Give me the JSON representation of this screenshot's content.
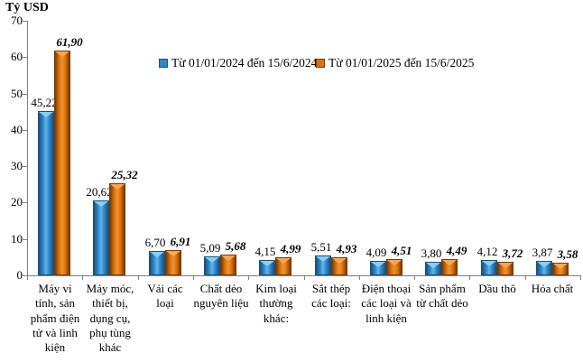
{
  "colors": {
    "axis": "#7f7f7f",
    "text": "#000000"
  },
  "chart_data": {
    "type": "bar",
    "ylabel": "Tỷ USD",
    "xlabel": "",
    "ylim": [
      0,
      70
    ],
    "yticks": [
      0,
      10,
      20,
      30,
      40,
      50,
      60,
      70
    ],
    "grid": false,
    "legend_position": "top-center",
    "categories": [
      "Máy vi tính, sản phẩm điện tử và linh kiện",
      "Máy móc, thiết bị, dụng cụ, phụ tùng khác",
      "Vải các loại",
      "Chất dẻo nguyên liệu",
      "Kim loại thường khác:",
      "Sắt thép các loại:",
      "Điện thoại các loại và linh kiện",
      "Sản phẩm từ chất dẻo",
      "Dầu thô",
      "Hóa chất"
    ],
    "series": [
      {
        "name": "Từ 01/01/2024 đến 15/6/2024",
        "values": [
          45.22,
          20.62,
          6.7,
          5.09,
          4.15,
          5.51,
          4.09,
          3.8,
          4.12,
          3.87
        ],
        "labels": [
          "45,22",
          "20,62",
          "6,70",
          "5,09",
          "4,15",
          "5,51",
          "4,09",
          "3,80",
          "4,12",
          "3,87"
        ],
        "colors": {
          "edge": "#17517e",
          "mid": "#2f86c7",
          "light": "#63b4ea",
          "bevel": "#8ccdf2"
        }
      },
      {
        "name": "Từ 01/01/2025 đến 15/6/2025",
        "values": [
          61.9,
          25.32,
          6.91,
          5.68,
          4.99,
          4.93,
          4.51,
          4.49,
          3.72,
          3.58
        ],
        "labels": [
          "61,90",
          "25,32",
          "6,91",
          "5,68",
          "4,99",
          "4,93",
          "4,51",
          "4,49",
          "3,72",
          "3,58"
        ],
        "colors": {
          "edge": "#7a3900",
          "mid": "#d9730f",
          "light": "#f2922e",
          "bevel": "#f7a855"
        }
      }
    ]
  }
}
